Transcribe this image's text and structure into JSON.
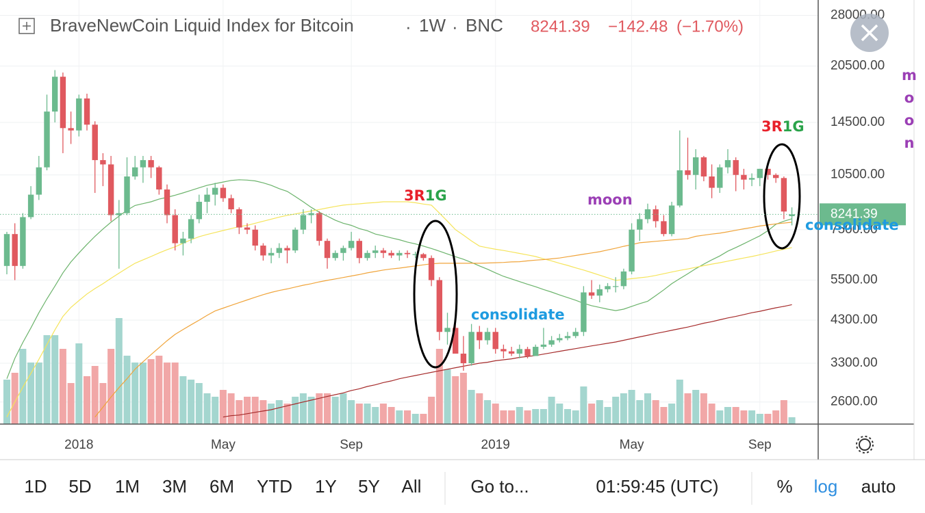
{
  "chart_data": {
    "type": "candlestick",
    "title": "BraveNewCoin Liquid Index for Bitcoin",
    "separator": "·",
    "interval": "1W",
    "source": "BNC",
    "change": "−142.48",
    "change_pct": "(−1.70%)",
    "log_scale": true,
    "grid": true,
    "up_color": "#6cba8e",
    "down_color": "#e0595f",
    "volume_up_color": "#a4d6cf",
    "volume_down_color": "#f1a7a7",
    "ylim": [
      2270,
      30130
    ],
    "yticks": [
      {
        "value": 2600,
        "label": "2600.00"
      },
      {
        "value": 3300,
        "label": "3300.00"
      },
      {
        "value": 4300,
        "label": "4300.00"
      },
      {
        "value": 5500,
        "label": "5500.00"
      },
      {
        "value": 7500,
        "label": "7500.00"
      },
      {
        "value": 10500,
        "label": "10500.00"
      },
      {
        "value": 14500,
        "label": "14500.00"
      },
      {
        "value": 20500,
        "label": "20500.00"
      },
      {
        "value": 28000,
        "label": "28000.00"
      }
    ],
    "categories": [
      null,
      null,
      null,
      null,
      null,
      null,
      null,
      null,
      null,
      "2018",
      null,
      null,
      null,
      null,
      null,
      null,
      null,
      null,
      null,
      null,
      null,
      null,
      null,
      null,
      null,
      null,
      null,
      "May",
      null,
      null,
      null,
      null,
      null,
      null,
      null,
      null,
      null,
      null,
      null,
      null,
      null,
      null,
      null,
      "Sep",
      null,
      null,
      null,
      null,
      null,
      null,
      null,
      null,
      null,
      null,
      null,
      null,
      null,
      null,
      null,
      null,
      null,
      "2019",
      null,
      null,
      null,
      null,
      null,
      null,
      null,
      null,
      null,
      null,
      null,
      null,
      null,
      null,
      null,
      null,
      "May",
      null,
      null,
      null,
      null,
      null,
      null,
      null,
      null,
      null,
      null,
      null,
      null,
      null,
      null,
      null,
      "Sep",
      null,
      null,
      null,
      null
    ],
    "open": [
      6000,
      7300,
      6000,
      8100,
      9300,
      11000,
      15500,
      19200,
      14000,
      13800,
      16800,
      14300,
      11500,
      11200,
      8200,
      8300,
      10400,
      11000,
      11500,
      11000,
      9600,
      8200,
      6900,
      7100,
      8000,
      8900,
      9300,
      9700,
      9100,
      8500,
      7600,
      7500,
      6800,
      6400,
      6500,
      6700,
      6600,
      7500,
      8200,
      8300,
      7000,
      6300,
      6500,
      6700,
      7000,
      6300,
      6500,
      6600,
      6500,
      6400,
      6500,
      6450,
      6450,
      6300,
      5500,
      4000,
      4100,
      3500,
      3300,
      4000,
      3800,
      4000,
      3600,
      3550,
      3500,
      3600,
      3450,
      3650,
      3700,
      3800,
      3850,
      3900,
      4000,
      5100,
      5000,
      5200,
      5300,
      5300,
      5800,
      7500,
      8000,
      8500,
      7900,
      7300,
      8700,
      10800,
      10500,
      11700,
      10400,
      9700,
      11000,
      11500,
      10500,
      10200,
      10300,
      10900,
      10500,
      10300,
      8150
    ],
    "high": [
      7400,
      7800,
      8300,
      9800,
      11800,
      17200,
      20000,
      19700,
      15500,
      17200,
      17300,
      14600,
      12000,
      11800,
      9000,
      11700,
      11800,
      11800,
      11800,
      11100,
      9900,
      8500,
      7400,
      8200,
      9300,
      9700,
      10000,
      9900,
      9300,
      8600,
      7800,
      7700,
      6900,
      6700,
      6900,
      6800,
      7600,
      8500,
      8500,
      8400,
      7100,
      6600,
      6800,
      7400,
      7100,
      6600,
      6800,
      6700,
      6600,
      6600,
      6600,
      6550,
      6500,
      6400,
      5600,
      4500,
      4300,
      3900,
      4200,
      4150,
      4100,
      4100,
      3700,
      3650,
      3700,
      3650,
      3700,
      4100,
      3900,
      3950,
      4000,
      4100,
      5300,
      5500,
      5350,
      5400,
      5600,
      5900,
      7800,
      8300,
      8800,
      8700,
      8200,
      8900,
      13800,
      13200,
      12300,
      11800,
      11200,
      11200,
      12300,
      11700,
      10900,
      10600,
      10900,
      10900,
      10600,
      10400,
      8600
    ],
    "low": [
      5700,
      5500,
      5900,
      8000,
      9000,
      10800,
      14500,
      12000,
      12700,
      13300,
      13800,
      9400,
      9800,
      7900,
      5900,
      8200,
      10200,
      10000,
      10300,
      9300,
      7800,
      6600,
      6400,
      6900,
      7800,
      8300,
      8700,
      8900,
      8300,
      7300,
      7300,
      6600,
      6200,
      6100,
      6300,
      6100,
      6500,
      7300,
      7800,
      6800,
      5900,
      6200,
      6200,
      6600,
      6100,
      6200,
      6300,
      6300,
      6300,
      6200,
      6300,
      6300,
      6200,
      5300,
      3800,
      3700,
      3500,
      3150,
      3250,
      3600,
      3700,
      3500,
      3400,
      3450,
      3400,
      3400,
      3450,
      3600,
      3650,
      3750,
      3800,
      3850,
      3900,
      4900,
      4800,
      5100,
      5100,
      5200,
      5700,
      7000,
      7800,
      7600,
      7200,
      7200,
      8600,
      10200,
      9600,
      10100,
      9100,
      9400,
      10600,
      9500,
      9600,
      9800,
      9800,
      10200,
      10000,
      8000,
      7700
    ],
    "close": [
      7300,
      6000,
      8100,
      9300,
      11000,
      15500,
      19200,
      14000,
      13800,
      16800,
      14300,
      11500,
      11200,
      8200,
      8300,
      10400,
      11000,
      11500,
      11000,
      9600,
      8200,
      6900,
      7100,
      8000,
      8900,
      9300,
      9700,
      9100,
      8500,
      7600,
      7500,
      6800,
      6400,
      6500,
      6700,
      6600,
      7500,
      8200,
      8300,
      7000,
      6300,
      6500,
      6700,
      7000,
      6300,
      6500,
      6600,
      6500,
      6400,
      6500,
      6450,
      6450,
      6300,
      5500,
      4000,
      4100,
      3500,
      3300,
      4000,
      3800,
      4000,
      3600,
      3550,
      3500,
      3600,
      3450,
      3650,
      3700,
      3800,
      3850,
      3900,
      4000,
      5100,
      5000,
      5200,
      5300,
      5300,
      5800,
      7500,
      8000,
      8500,
      7900,
      7300,
      8700,
      10800,
      10500,
      11700,
      10400,
      9700,
      11000,
      11500,
      10500,
      10200,
      10300,
      10900,
      10500,
      10300,
      8383.87,
      8241.39
    ],
    "volume": [
      65,
      75,
      110,
      90,
      90,
      130,
      130,
      110,
      60,
      118,
      70,
      85,
      60,
      110,
      155,
      100,
      90,
      90,
      95,
      100,
      90,
      90,
      70,
      65,
      60,
      45,
      40,
      50,
      45,
      35,
      40,
      40,
      35,
      30,
      35,
      30,
      40,
      45,
      40,
      45,
      45,
      40,
      45,
      35,
      30,
      30,
      25,
      30,
      25,
      20,
      20,
      15,
      15,
      40,
      110,
      80,
      70,
      75,
      50,
      45,
      35,
      30,
      20,
      20,
      25,
      20,
      22,
      22,
      40,
      30,
      22,
      20,
      55,
      30,
      35,
      25,
      40,
      45,
      50,
      35,
      45,
      35,
      25,
      30,
      65,
      45,
      50,
      45,
      30,
      20,
      25,
      25,
      20,
      20,
      15,
      15,
      20,
      35,
      10
    ],
    "series": [
      {
        "color": "#6bb36b",
        "values": [
          3000,
          3400,
          3750,
          4100,
          4500,
          4900,
          5300,
          5750,
          6150,
          6500,
          6850,
          7200,
          7530,
          7850,
          8150,
          8450,
          8700,
          8800,
          8900,
          9050,
          9150,
          9270,
          9400,
          9550,
          9700,
          9850,
          9950,
          10050,
          10150,
          10190,
          10170,
          10120,
          10000,
          9850,
          9650,
          9490,
          9200,
          8900,
          8600,
          8350,
          8150,
          7950,
          7800,
          7700,
          7550,
          7450,
          7300,
          7220,
          7130,
          7050,
          6950,
          6870,
          6780,
          6680,
          6570,
          6460,
          6350,
          6250,
          6130,
          6000,
          5880,
          5750,
          5630,
          5540,
          5450,
          5360,
          5280,
          5190,
          5110,
          5020,
          4940,
          4860,
          4770,
          4700,
          4650,
          4600,
          4560,
          4600,
          4680,
          4760,
          4830,
          5000,
          5180,
          5380,
          5550,
          5720,
          5900,
          6070,
          6230,
          6380,
          6570,
          6720,
          6880,
          7050,
          7220,
          7450,
          7750,
          7900,
          8020
        ]
      },
      {
        "color": "#f5e45a",
        "values": [
          2370,
          2600,
          2850,
          3100,
          3380,
          3700,
          4050,
          4400,
          4650,
          4850,
          5050,
          5220,
          5380,
          5560,
          5740,
          5920,
          6100,
          6230,
          6360,
          6500,
          6630,
          6750,
          6900,
          7050,
          7180,
          7280,
          7370,
          7460,
          7550,
          7640,
          7700,
          7800,
          7900,
          8000,
          8100,
          8190,
          8260,
          8340,
          8410,
          8490,
          8570,
          8650,
          8720,
          8760,
          8790,
          8830,
          8860,
          8900,
          8900,
          8900,
          8900,
          8850,
          8780,
          8720,
          8300,
          7900,
          7500,
          7250,
          7000,
          6780,
          6710,
          6650,
          6600,
          6540,
          6480,
          6420,
          6360,
          6270,
          6190,
          6100,
          6020,
          5930,
          5850,
          5760,
          5670,
          5580,
          5490,
          5520,
          5550,
          5580,
          5610,
          5660,
          5720,
          5780,
          5840,
          5890,
          5950,
          6010,
          6070,
          6120,
          6180,
          6240,
          6300,
          6360,
          6430,
          6500,
          6580,
          6650,
          6720
        ]
      },
      {
        "color": "#f0a43a",
        "values": [
          null,
          null,
          null,
          null,
          null,
          null,
          null,
          null,
          null,
          null,
          null,
          2370,
          2520,
          2680,
          2840,
          3000,
          3180,
          3330,
          3480,
          3630,
          3790,
          3940,
          4060,
          4180,
          4300,
          4430,
          4550,
          4630,
          4710,
          4790,
          4870,
          4950,
          5030,
          5100,
          5160,
          5210,
          5270,
          5330,
          5380,
          5440,
          5490,
          5540,
          5590,
          5640,
          5690,
          5750,
          5800,
          5850,
          5890,
          5920,
          5960,
          6000,
          6040,
          6080,
          6100,
          6100,
          6100,
          6100,
          6100,
          6100,
          6110,
          6120,
          6130,
          6150,
          6160,
          6190,
          6220,
          6240,
          6270,
          6300,
          6350,
          6400,
          6450,
          6500,
          6550,
          6620,
          6690,
          6770,
          6840,
          6920,
          6950,
          6980,
          7010,
          7040,
          7070,
          7100,
          7200,
          7250,
          7300,
          7340,
          7400,
          7470,
          7540,
          7600,
          7670,
          7720,
          7770,
          7810,
          7850
        ]
      },
      {
        "color": "#a52a2a",
        "values": [
          null,
          null,
          null,
          null,
          null,
          null,
          null,
          null,
          null,
          null,
          null,
          null,
          null,
          null,
          null,
          null,
          null,
          null,
          null,
          null,
          null,
          null,
          null,
          null,
          null,
          null,
          null,
          2370,
          2390,
          2400,
          2420,
          2440,
          2460,
          2480,
          2510,
          2540,
          2570,
          2600,
          2630,
          2660,
          2690,
          2720,
          2750,
          2790,
          2820,
          2860,
          2890,
          2930,
          2960,
          3000,
          3030,
          3060,
          3090,
          3120,
          3150,
          3180,
          3210,
          3240,
          3270,
          3300,
          3320,
          3350,
          3370,
          3390,
          3420,
          3440,
          3460,
          3490,
          3520,
          3550,
          3580,
          3610,
          3640,
          3670,
          3700,
          3730,
          3760,
          3800,
          3840,
          3880,
          3920,
          3960,
          4000,
          4040,
          4080,
          4120,
          4170,
          4220,
          4260,
          4310,
          4360,
          4400,
          4450,
          4500,
          4540,
          4590,
          4640,
          4680,
          4730
        ]
      }
    ],
    "annotations": [
      [
        "3R",
        "1G"
      ],
      [
        "moon"
      ],
      [
        "consolidate"
      ],
      [
        "3R",
        "1G"
      ],
      [
        "consolidate"
      ],
      [
        "moon"
      ]
    ]
  },
  "toolbar": {
    "ranges": [
      "1D",
      "5D",
      "1M",
      "3M",
      "6M",
      "YTD",
      "1Y",
      "5Y",
      "All"
    ],
    "goto": "Go to...",
    "time": "01:59:45 (UTC)",
    "options": [
      "%",
      "log",
      "auto"
    ]
  }
}
